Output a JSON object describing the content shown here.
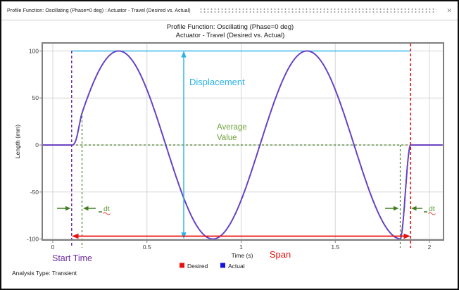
{
  "window": {
    "title": "Profile Function: Oscillating (Phase=0 deg) : Actuator - Travel (Desired vs. Actual)",
    "close_icon": "✕"
  },
  "footer": {
    "analysis_type": "Analysis Type: Transient"
  },
  "chart_data": {
    "type": "line",
    "title_line1": "Profile Function: Oscillating (Phase=0 deg)",
    "title_line2": "Actuator - Travel (Desired vs. Actual)",
    "xlabel": "Time (s)",
    "ylabel": "Length (mm)",
    "xlim": [
      -0.06,
      2.07
    ],
    "ylim": [
      -101,
      109
    ],
    "grid": true,
    "x_ticks": [
      0,
      0.5,
      1,
      1.5,
      2
    ],
    "x_tick_labels": [
      "0",
      "0.5",
      "1",
      "1.5",
      "2"
    ],
    "y_ticks": [
      100,
      50,
      0,
      -50,
      -100
    ],
    "y_tick_labels": [
      "100",
      "50",
      "0",
      "-50",
      "-100"
    ],
    "legend_position": "bottom-center",
    "legend": [
      {
        "label": "Desired",
        "color": "#e8100e"
      },
      {
        "label": "Actual",
        "color": "#1414dc"
      }
    ],
    "series": [
      {
        "name": "Desired",
        "profile": "oscillating-sine",
        "amplitude_mm": 100,
        "period_s": 1,
        "phase_deg": 0,
        "average_value_mm": 0,
        "start_time_s": 0.1,
        "end_time_s": 1.9,
        "span_s": 1.8,
        "dt_s": 0.055
      },
      {
        "name": "Actual",
        "profile": "oscillating-sine",
        "amplitude_mm": 100,
        "period_s": 1,
        "phase_deg": 0,
        "average_value_mm": 0,
        "start_time_s": 0.1,
        "end_time_s": 1.9,
        "span_s": 1.8,
        "dt_s": 0.055
      }
    ],
    "annotations": {
      "displacement": "Displacement",
      "average_line1": "Average",
      "average_line2": "Value",
      "dt": "dt",
      "start_time": "Start Time",
      "span": "Span"
    },
    "colors": {
      "curve": "#5a44d4",
      "displacement": "#29b2e8",
      "average": "#6fa23e",
      "dt_annotation": "#4e7a28",
      "start_time": "#7030a0",
      "span": "#e8100e",
      "grid": "#d5d5d5",
      "frame": "#7f7f7f"
    }
  }
}
